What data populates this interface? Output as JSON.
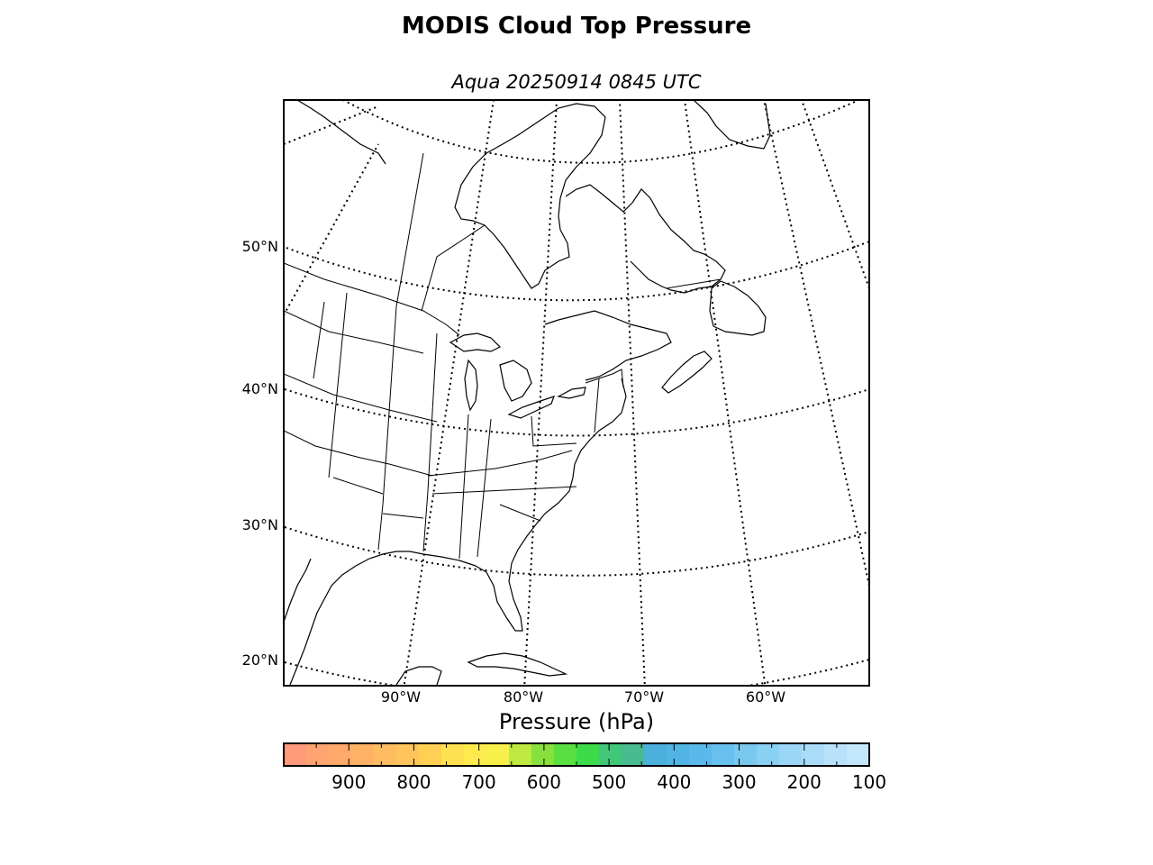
{
  "title": "MODIS Cloud Top Pressure",
  "subtitle": "Aqua 20250914 0845 UTC",
  "map": {
    "projection": "lambert-conformal",
    "lat_labels": [
      {
        "value": 50,
        "text": "50°N"
      },
      {
        "value": 40,
        "text": "40°N"
      },
      {
        "value": 30,
        "text": "30°N"
      },
      {
        "value": 20,
        "text": "20°N"
      }
    ],
    "lon_labels": [
      {
        "value": -90,
        "text": "90°W"
      },
      {
        "value": -80,
        "text": "80°W"
      },
      {
        "value": -70,
        "text": "70°W"
      },
      {
        "value": -60,
        "text": "60°W"
      }
    ],
    "graticule_style": "dotted",
    "coastline_color": "#000000",
    "cloud_data_shown": false
  },
  "colorbar": {
    "label": "Pressure (hPa)",
    "range": [
      1000,
      100
    ],
    "ticks": [
      "900",
      "800",
      "700",
      "600",
      "500",
      "400",
      "300",
      "200",
      "100"
    ],
    "colors": [
      "#ff9a7a",
      "#ffa470",
      "#ffaa6a",
      "#ffb266",
      "#ffbc60",
      "#ffc45c",
      "#ffd054",
      "#fee050",
      "#fdea4c",
      "#f8ef4a",
      "#bfe840",
      "#88e03c",
      "#58e040",
      "#3cdc48",
      "#40c878",
      "#48bc90",
      "#4cb0dc",
      "#50b4e4",
      "#5ab8ea",
      "#68c0ee",
      "#78c8f0",
      "#88d0f4",
      "#9cd6f6",
      "#aadcf8",
      "#b8e2fa",
      "#c4e8fb"
    ]
  }
}
